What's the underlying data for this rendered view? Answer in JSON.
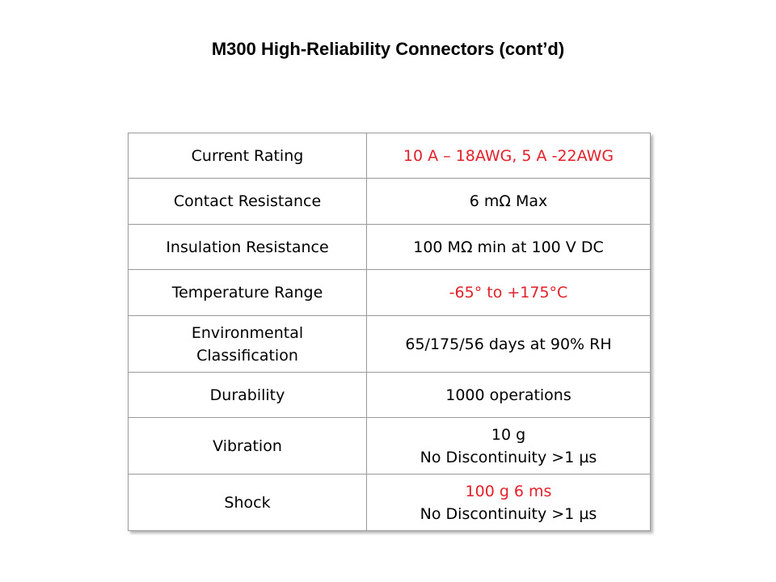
{
  "header": {
    "title": "M300 High-Reliability Connectors (cont’d)"
  },
  "table": {
    "rows": [
      {
        "label": [
          "Current Rating"
        ],
        "lines": [
          {
            "text": "10 A – 18AWG, 5 A -22AWG",
            "color": "#e3202a"
          }
        ]
      },
      {
        "label": [
          "Contact Resistance"
        ],
        "lines": [
          {
            "text": "6 mΩ Max",
            "color": "#000000"
          }
        ]
      },
      {
        "label": [
          "Insulation Resistance"
        ],
        "lines": [
          {
            "text": "100 MΩ min at 100 V DC",
            "color": "#000000"
          }
        ]
      },
      {
        "label": [
          "Temperature Range"
        ],
        "lines": [
          {
            "text": "-65° to +175°C",
            "color": "#e3202a"
          }
        ]
      },
      {
        "label": [
          "Environmental",
          "Classification"
        ],
        "lines": [
          {
            "text": "65/175/56 days at 90% RH",
            "color": "#000000"
          }
        ]
      },
      {
        "label": [
          "Durability"
        ],
        "lines": [
          {
            "text": "1000 operations",
            "color": "#000000"
          }
        ]
      },
      {
        "label": [
          "Vibration"
        ],
        "lines": [
          {
            "text": "10 g",
            "color": "#000000"
          },
          {
            "text": "No Discontinuity >1 µs",
            "color": "#000000"
          }
        ]
      },
      {
        "label": [
          "Shock"
        ],
        "lines": [
          {
            "text": "100 g 6 ms",
            "color": "#e3202a"
          },
          {
            "text": "No Discontinuity >1 µs",
            "color": "#000000"
          }
        ]
      }
    ]
  }
}
